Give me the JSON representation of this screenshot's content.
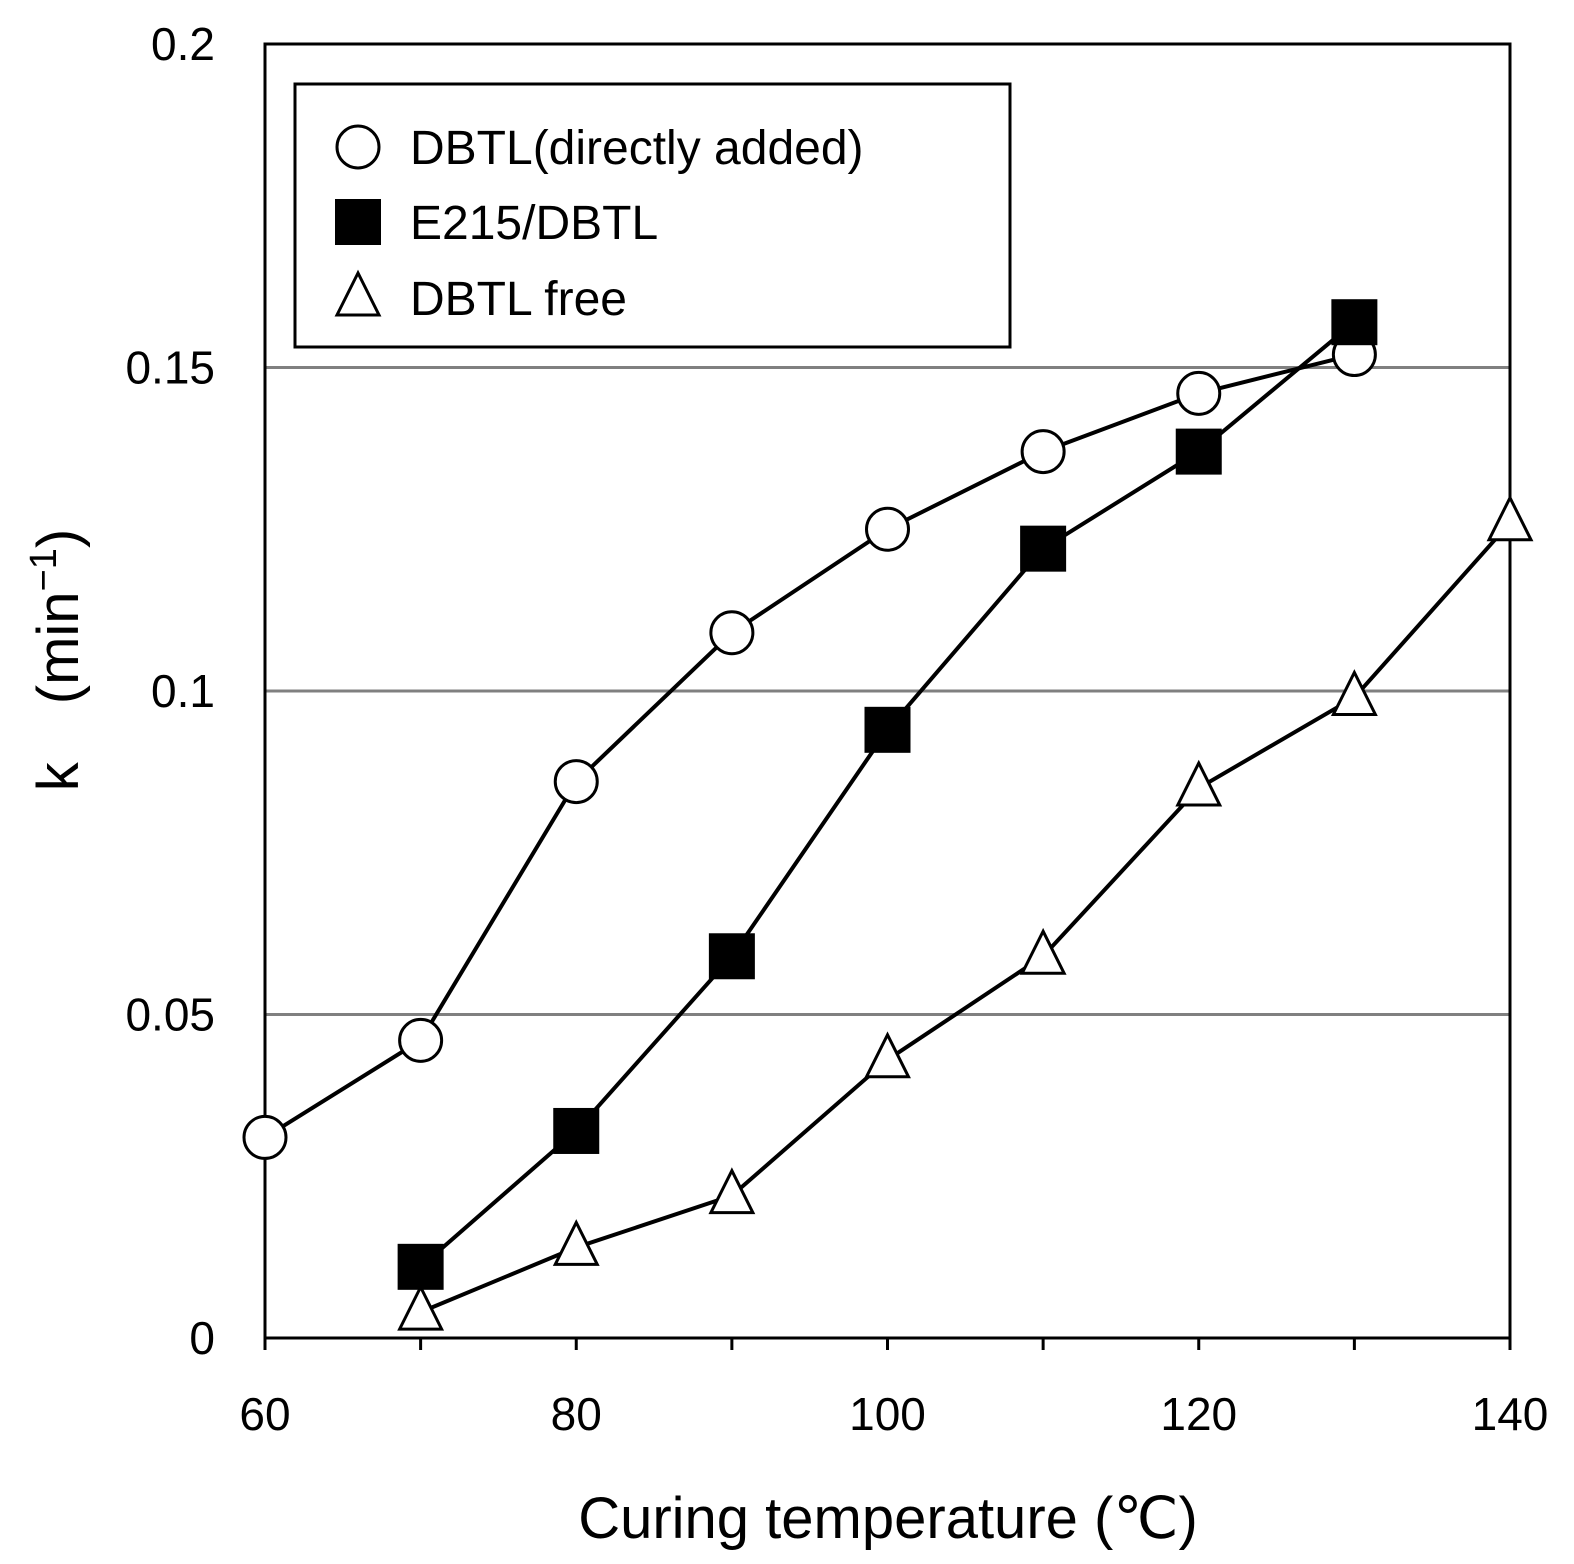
{
  "chart_data": {
    "type": "line",
    "xlabel": "Curing temperature (℃)",
    "ylabel_main": "k　(min",
    "ylabel_sup": "−1",
    "ylabel_close": ")",
    "xlim": [
      60,
      140
    ],
    "ylim": [
      0,
      0.2
    ],
    "xticks": [
      60,
      80,
      100,
      120,
      140
    ],
    "xtick_labels": [
      "60",
      "80",
      "100",
      "120",
      "140"
    ],
    "yticks": [
      0,
      0.05,
      0.1,
      0.15,
      0.2
    ],
    "ytick_labels": [
      "0",
      "0.05",
      "0.1",
      "0.15",
      "0.2"
    ],
    "minor_xticks": [
      70,
      90,
      110,
      130
    ],
    "gridlines_y": [
      0.05,
      0.1,
      0.15
    ],
    "legend_position": "top-left",
    "series": [
      {
        "name": "DBTL(directly added)",
        "marker": "open-circle",
        "x": [
          60,
          70,
          80,
          90,
          100,
          110,
          120,
          130
        ],
        "y": [
          0.031,
          0.046,
          0.086,
          0.109,
          0.125,
          0.137,
          0.146,
          0.152
        ]
      },
      {
        "name": "E215/DBTL",
        "marker": "filled-square",
        "x": [
          70,
          80,
          90,
          100,
          110,
          120,
          130
        ],
        "y": [
          0.011,
          0.032,
          0.059,
          0.094,
          0.122,
          0.137,
          0.157
        ]
      },
      {
        "name": "DBTL free",
        "marker": "open-triangle",
        "x": [
          70,
          80,
          90,
          100,
          110,
          120,
          130,
          140
        ],
        "y": [
          0.004,
          0.014,
          0.022,
          0.043,
          0.059,
          0.085,
          0.099,
          0.126
        ]
      }
    ]
  }
}
